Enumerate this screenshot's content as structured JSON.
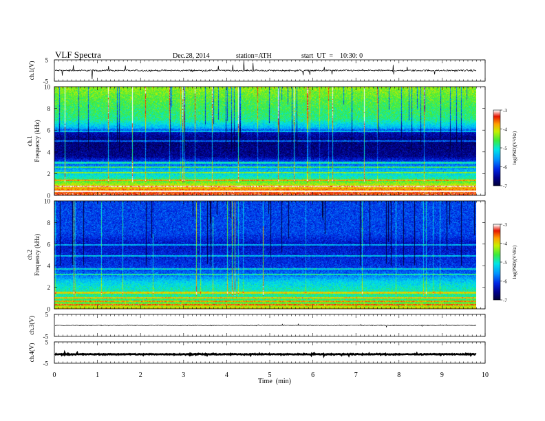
{
  "header": {
    "title": "VLF  Spectra",
    "date": "Dec.28, 2014",
    "station": "station=ATH",
    "start": "start  UT  =    10:30: 0"
  },
  "chart_data": {
    "type": "heatmap",
    "x": {
      "label": "Time  (min)",
      "range": [
        0,
        10
      ],
      "ticks": [
        "0",
        "1",
        "2",
        "3",
        "4",
        "5",
        "6",
        "7",
        "8",
        "9",
        "10"
      ],
      "data_end": 9.8
    },
    "panels": [
      {
        "id": "ch1-wave",
        "kind": "waveform",
        "ylabel": "ch.1(V)",
        "ylim": [
          -5,
          5
        ],
        "ticks": [
          "5",
          "-5"
        ],
        "baseline": 0,
        "noise_amplitude": 0.6,
        "spike_amplitude": 2.8
      },
      {
        "id": "ch1-spec",
        "kind": "spectrogram",
        "ylabel_top": "ch.1",
        "ylabel_bottom": "Frequency  (kHz)",
        "ylim": [
          0,
          10
        ],
        "ticks": [
          "0",
          "2",
          "4",
          "6",
          "8",
          "10"
        ],
        "colorbar": {
          "label": "log(PSD)(V²/Hz)",
          "range": [
            -7,
            -3
          ],
          "ticks": [
            "-3",
            "-4",
            "-5",
            "-6",
            "-7"
          ]
        },
        "profile": [
          [
            0.0,
            -3.3
          ],
          [
            0.5,
            -3.6
          ],
          [
            1.0,
            -4.2
          ],
          [
            1.6,
            -4.9
          ],
          [
            2.3,
            -5.4
          ],
          [
            3.0,
            -5.9
          ],
          [
            3.6,
            -6.6
          ],
          [
            5.0,
            -6.7
          ],
          [
            5.8,
            -6.4
          ],
          [
            6.2,
            -5.4
          ],
          [
            7.0,
            -4.8
          ],
          [
            8.5,
            -4.6
          ],
          [
            10.0,
            -4.3
          ]
        ],
        "lines_khz": [
          0.4,
          0.8,
          1.4,
          2.1,
          2.6,
          3.0,
          5.0,
          5.9
        ],
        "spheric_rate": 0.6
      },
      {
        "id": "ch2-spec",
        "kind": "spectrogram",
        "ylabel_top": "ch.2",
        "ylabel_bottom": "Frequency  (kHz)",
        "ylim": [
          0,
          10
        ],
        "ticks": [
          "0",
          "2",
          "4",
          "6",
          "8",
          "10"
        ],
        "colorbar": {
          "label": "log(PSD)(V²/Hz)",
          "range": [
            -7,
            -3
          ],
          "ticks": [
            "-3",
            "-4",
            "-5",
            "-6",
            "-7"
          ]
        },
        "profile": [
          [
            0.0,
            -3.9
          ],
          [
            0.4,
            -4.4
          ],
          [
            1.0,
            -4.8
          ],
          [
            1.6,
            -4.9
          ],
          [
            2.5,
            -5.2
          ],
          [
            3.2,
            -5.8
          ],
          [
            4.0,
            -6.1
          ],
          [
            5.0,
            -6.2
          ],
          [
            6.0,
            -6.3
          ],
          [
            7.0,
            -6.0
          ],
          [
            8.5,
            -6.0
          ],
          [
            10.0,
            -6.0
          ]
        ],
        "lines_khz": [
          0.4,
          0.7,
          1.0,
          1.5,
          3.2,
          3.7,
          4.9,
          5.9
        ],
        "spheric_rate": 0.5
      },
      {
        "id": "ch3-wave",
        "kind": "waveform",
        "ylabel": "ch.3(V)",
        "ylim": [
          -5,
          5
        ],
        "ticks": [
          "5",
          "-5"
        ],
        "baseline": 0,
        "noise_amplitude": 0.25,
        "spike_amplitude": 0.4
      },
      {
        "id": "ch4-wave",
        "kind": "waveform",
        "ylabel": "ch.4(V)",
        "ylim": [
          -5,
          5
        ],
        "ticks": [
          "5",
          "-5"
        ],
        "baseline": -0.8,
        "noise_amplitude": 0.35,
        "spike_amplitude": 0.4
      }
    ]
  }
}
